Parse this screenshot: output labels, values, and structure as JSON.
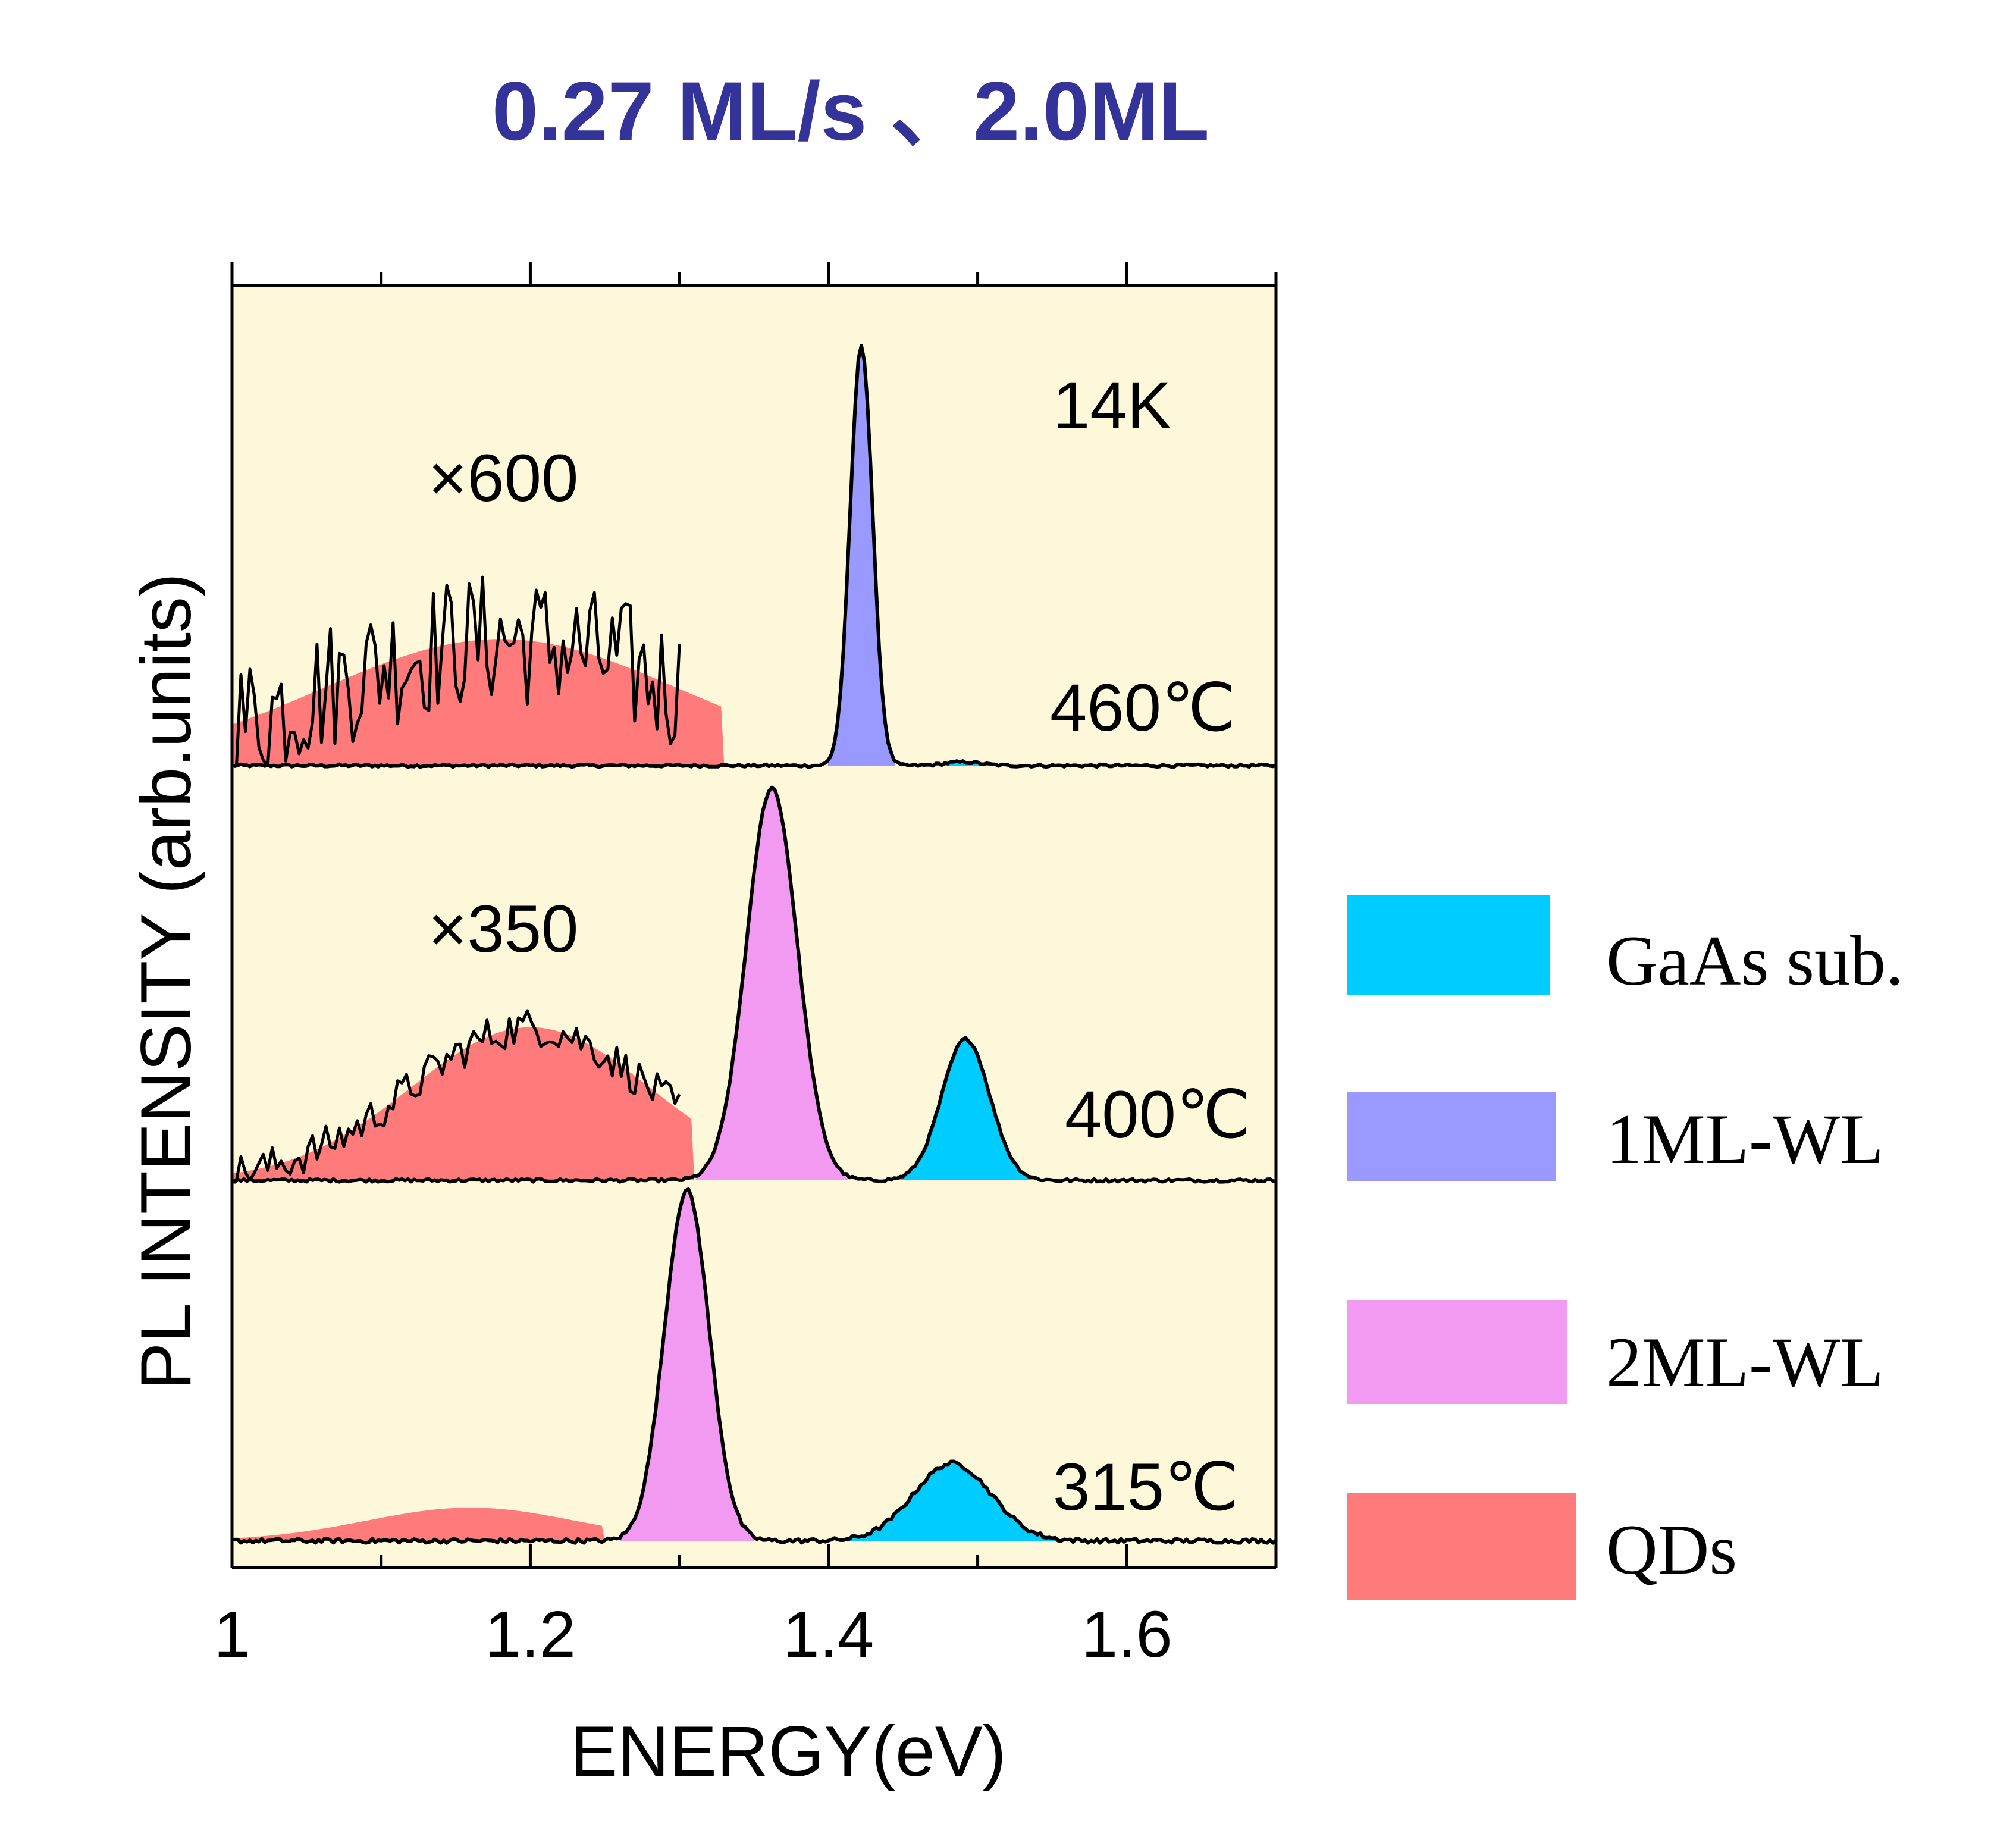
{
  "chart_data": {
    "type": "area",
    "title": "0.27 ML/s 、2.0ML",
    "xlabel": "ENERGY(eV)",
    "ylabel": "PL INTENSITY (arb.units)",
    "xlim": [
      1.0,
      1.7
    ],
    "xticks": [
      {
        "value": 1.0,
        "label": "1"
      },
      {
        "value": 1.2,
        "label": "1.2"
      },
      {
        "value": 1.4,
        "label": "1.4"
      },
      {
        "value": 1.6,
        "label": "1.6"
      }
    ],
    "x_minor_ticks": [
      1.1,
      1.3,
      1.5,
      1.7
    ],
    "grid": false,
    "background_color": "#FDF8DA",
    "line_color": "#000000",
    "components": {
      "gaas": {
        "name": "GaAs sub.",
        "color": "#00CCFF"
      },
      "wl1": {
        "name": "1ML-WL",
        "color": "#9999FF"
      },
      "wl2": {
        "name": "2ML-WL",
        "color": "#F299F2"
      },
      "qds": {
        "name": "QDs",
        "color": "#FF7B7B"
      }
    },
    "legend": {
      "position": "right",
      "items": [
        {
          "label": "GaAs sub.",
          "color": "#00CCFF"
        },
        {
          "label": "1ML-WL",
          "color": "#9999FF"
        },
        {
          "label": "2ML-WL",
          "color": "#F299F2"
        },
        {
          "label": "QDs",
          "color": "#FF7B7B"
        }
      ]
    },
    "panel_labels": {
      "temperature": "14K"
    },
    "series": [
      {
        "name": "460℃",
        "panel": 0,
        "qd_magnification": "×600",
        "qd_band": {
          "from": 1.0,
          "to": 1.33,
          "center": 1.18,
          "sigma": 0.12,
          "amplitude": 0.28
        },
        "qd_noisy_trace": {
          "from": 1.0,
          "to": 1.3,
          "noise": 0.15
        },
        "peaks": [
          {
            "component": "wl1",
            "center": 1.422,
            "sigma": 0.0075,
            "amplitude": 0.93
          },
          {
            "component": "gaas",
            "center": 1.49,
            "sigma": 0.012,
            "amplitude": 0.008
          }
        ],
        "baseline_noise": 0.003
      },
      {
        "name": "400℃",
        "panel": 1,
        "qd_magnification": "×350",
        "qd_band": {
          "from": 1.0,
          "to": 1.31,
          "center": 1.2,
          "sigma": 0.08,
          "amplitude": 0.39
        },
        "qd_noisy_trace": {
          "from": 1.0,
          "to": 1.3,
          "noise": 0.05
        },
        "peaks": [
          {
            "component": "wl2",
            "center": 1.362,
            "sigma": 0.017,
            "amplitude": 1.0
          },
          {
            "component": "gaas",
            "center": 1.492,
            "sigma": 0.016,
            "amplitude": 0.36
          }
        ],
        "baseline_noise": 0.004
      },
      {
        "name": "315℃",
        "panel": 2,
        "qd_band": {
          "from": 1.0,
          "to": 1.25,
          "center": 1.16,
          "sigma": 0.07,
          "amplitude": 0.09
        },
        "peaks": [
          {
            "component": "wl2",
            "center": 1.305,
            "sigma": 0.015,
            "amplitude": 0.95
          },
          {
            "component": "gaas",
            "center": 1.483,
            "sigma": 0.026,
            "amplitude": 0.21
          }
        ],
        "baseline_noise": 0.006
      }
    ]
  }
}
